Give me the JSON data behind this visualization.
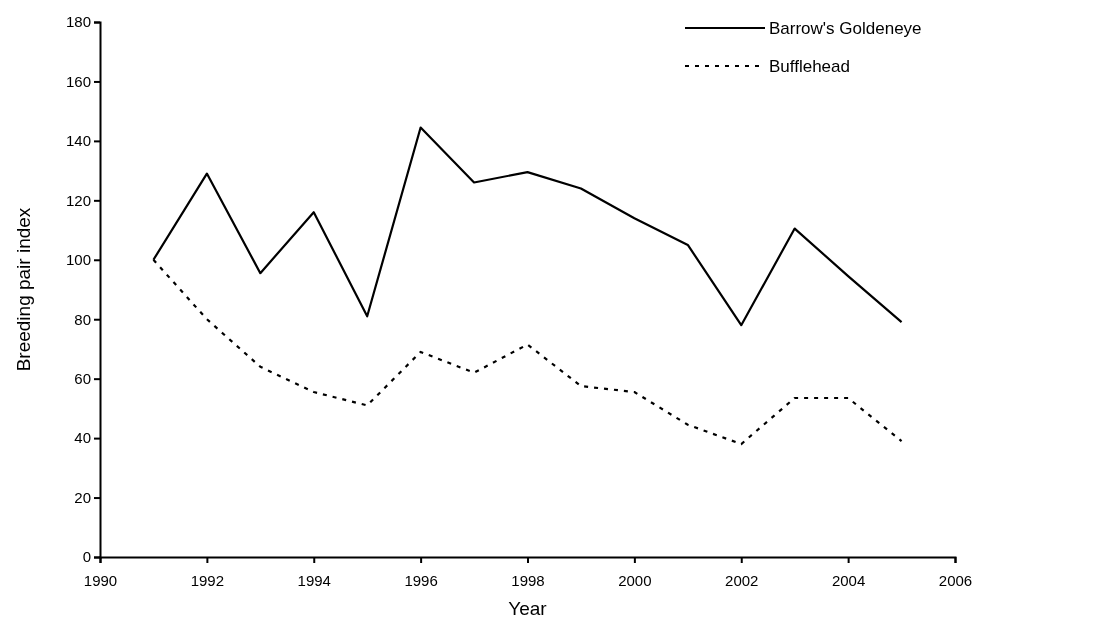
{
  "chart_data": {
    "type": "line",
    "xlabel": "Year",
    "ylabel": "Breeding pair index",
    "x": [
      1991,
      1992,
      1993,
      1994,
      1995,
      1996,
      1997,
      1998,
      1999,
      2000,
      2001,
      2002,
      2003,
      2004,
      2005
    ],
    "series": [
      {
        "name": "Barrow's Goldeneye",
        "color": "#000000",
        "line_style": "solid",
        "values": [
          100,
          129,
          95.5,
          116,
          81,
          144.5,
          126,
          129.5,
          124,
          114,
          105,
          78,
          110.5,
          94.5,
          79
        ]
      },
      {
        "name": "Bufflehead",
        "color": "#000000",
        "line_style": "dotted",
        "values": [
          100,
          80,
          64,
          55.5,
          51,
          69,
          62,
          71.5,
          57.5,
          55.5,
          44.5,
          38,
          53.5,
          53.5,
          39
        ]
      }
    ],
    "xlim": [
      1990,
      2006
    ],
    "xticks": [
      1990,
      1992,
      1994,
      1996,
      1998,
      2000,
      2002,
      2004,
      2006
    ],
    "ylim": [
      0,
      180
    ],
    "yticks": [
      0,
      20,
      40,
      60,
      80,
      100,
      120,
      140,
      160,
      180
    ],
    "grid": false,
    "legend": "top right",
    "marker": "none"
  }
}
